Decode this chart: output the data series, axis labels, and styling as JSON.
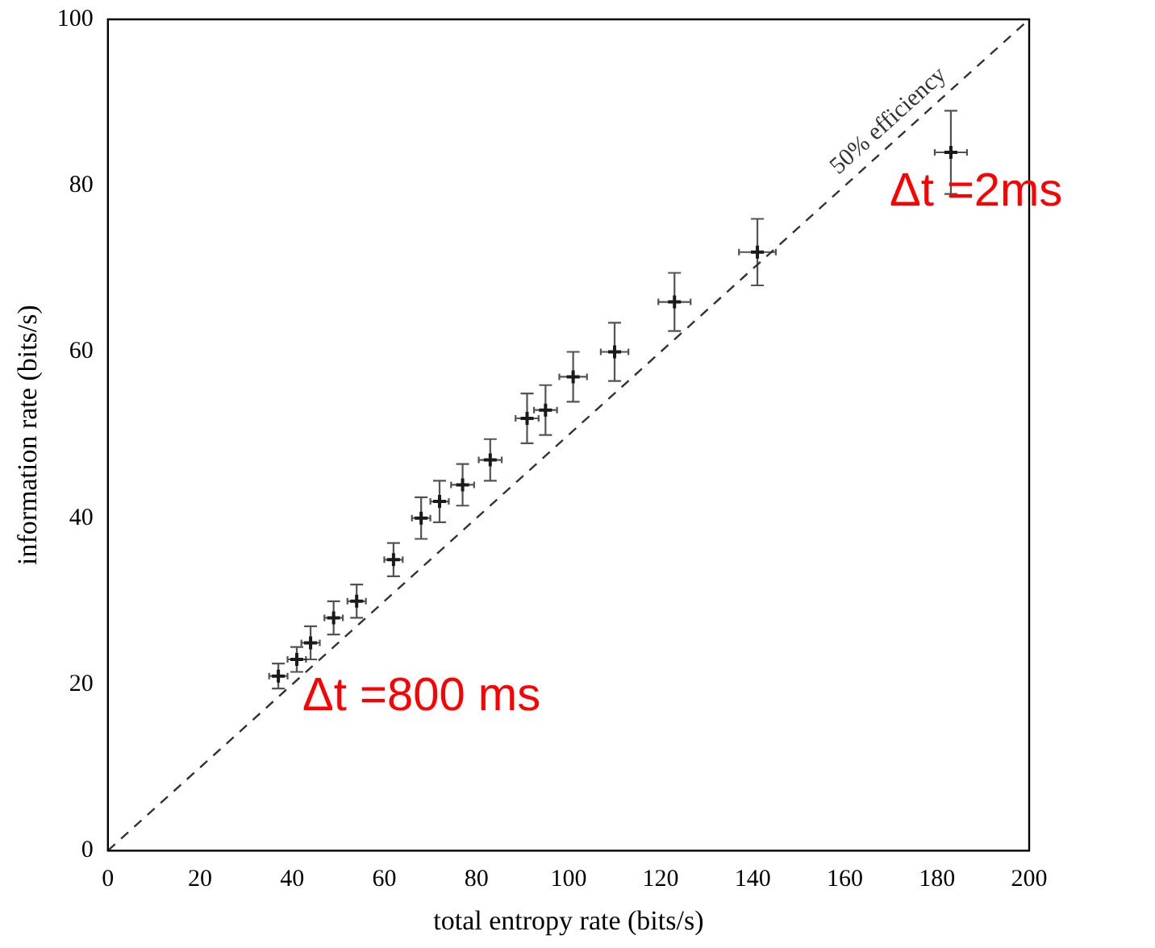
{
  "chart_data": {
    "type": "scatter",
    "xlabel": "total entropy rate (bits/s)",
    "ylabel": "information rate (bits/s)",
    "xlim": [
      0,
      200
    ],
    "xticks": [
      0,
      20,
      40,
      60,
      80,
      100,
      120,
      140,
      160,
      180,
      200
    ],
    "ylim": [
      0,
      100
    ],
    "yticks": [
      0,
      20,
      40,
      60,
      80,
      100
    ],
    "legend": false,
    "series": [
      {
        "color": "#1a1a1a",
        "marker": "cross",
        "x": [
          37,
          41,
          44,
          49,
          54,
          62,
          68,
          72,
          77,
          83,
          91,
          95,
          101,
          110,
          123,
          141,
          183
        ],
        "values": [
          21,
          23,
          25,
          28,
          30,
          35,
          40,
          42,
          44,
          47,
          52,
          53,
          57,
          60,
          66,
          72,
          84
        ],
        "errors": [
          1.5,
          1.5,
          2,
          2,
          2,
          2,
          2.5,
          2.5,
          2.5,
          2.5,
          3,
          3,
          3,
          3.5,
          3.5,
          4,
          5
        ],
        "xerrors": [
          2,
          2,
          2,
          2,
          2,
          2,
          2,
          2,
          2.5,
          2.5,
          2.5,
          2.5,
          3,
          3,
          3.5,
          4,
          3.5
        ]
      },
      {
        "type": "line",
        "name": "50% efficiency",
        "color": "#333333",
        "line_style": "dashed",
        "x": [
          0,
          200
        ],
        "values": [
          0,
          100
        ]
      }
    ],
    "annotations": [
      {
        "text": "Δt =2ms",
        "x": 183,
        "y": 84
      },
      {
        "text": "Δt =800 ms",
        "x": 37,
        "y": 21
      }
    ]
  }
}
